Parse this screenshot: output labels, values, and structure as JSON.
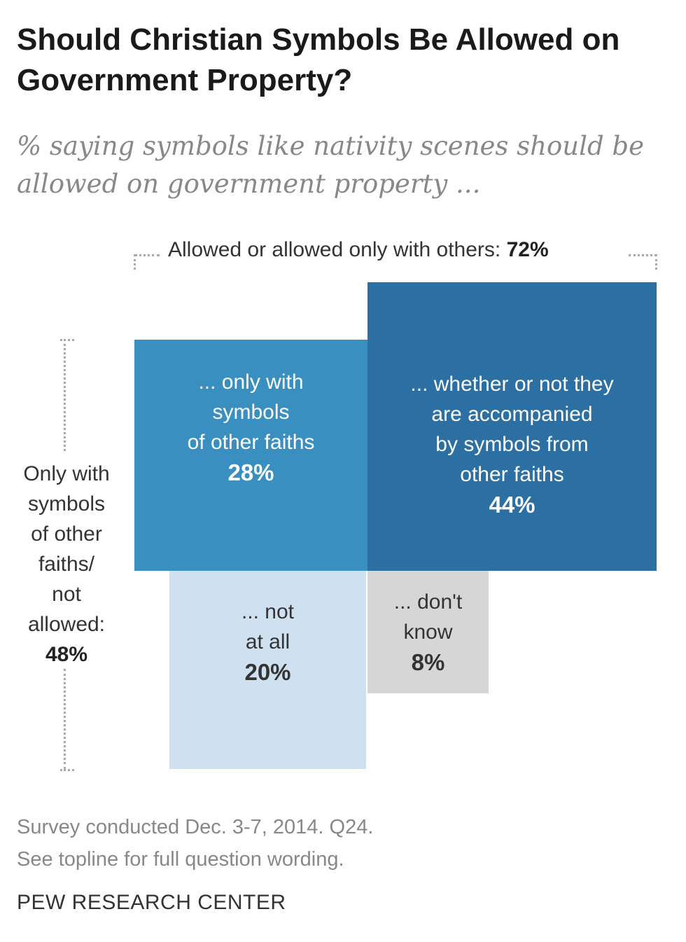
{
  "chart_data": {
    "type": "bar",
    "title": "Should Christian Symbols Be Allowed on Government Property?",
    "subtitle": "% saying symbols like nativity scenes should be allowed on government property ...",
    "segments": [
      {
        "id": "only_with_others",
        "label_lines": [
          "... only with",
          "symbols",
          "of other faiths"
        ],
        "value": 28,
        "value_label": "28%",
        "color": "#3a8fc1",
        "text_color": "#ffffff"
      },
      {
        "id": "whether_or_not",
        "label_lines": [
          "... whether or not they",
          "are accompanied",
          "by symbols from",
          "other faiths"
        ],
        "value": 44,
        "value_label": "44%",
        "color": "#2b6fa3",
        "text_color": "#ffffff"
      },
      {
        "id": "not_at_all",
        "label_lines": [
          "... not",
          "at all"
        ],
        "value": 20,
        "value_label": "20%",
        "color": "#cfe1f0",
        "text_color": "#333333"
      },
      {
        "id": "dont_know",
        "label_lines": [
          "... don't",
          "know"
        ],
        "value": 8,
        "value_label": "8%",
        "color": "#d6d6d6",
        "text_color": "#333333"
      }
    ],
    "groups": {
      "top": {
        "text": "Allowed or allowed only with others: ",
        "value_label": "72%",
        "value": 72
      },
      "side": {
        "text_lines": [
          "Only with",
          "symbols",
          "of other",
          "faiths/",
          "not",
          "allowed:"
        ],
        "value_label": "48%",
        "value": 48
      }
    }
  },
  "footer": {
    "note1": "Survey conducted Dec. 3-7, 2014. Q24.",
    "note2": "See topline for full question wording.",
    "source": "PEW RESEARCH CENTER"
  }
}
